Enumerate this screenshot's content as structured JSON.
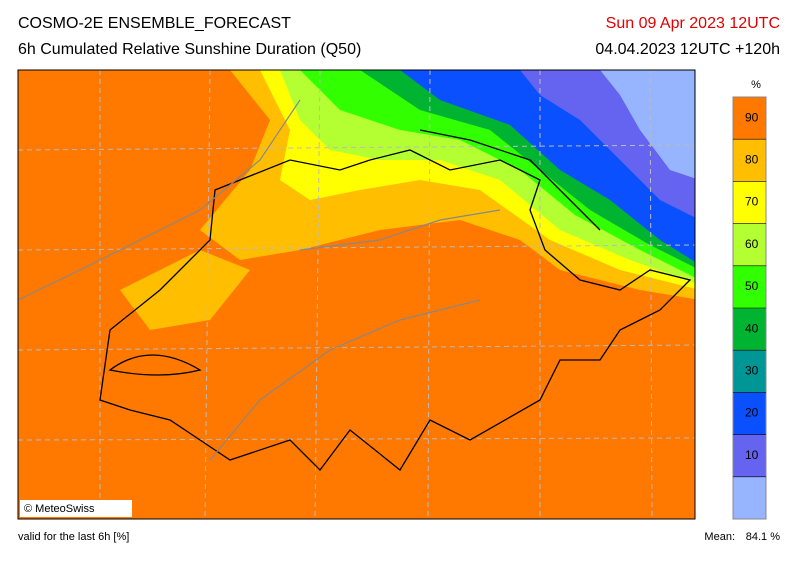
{
  "header": {
    "title": "COSMO-2E ENSEMBLE_FORECAST",
    "subtitle": "6h Cumulated Relative Sunshine Duration (Q50)",
    "valid_date": "Sun 09 Apr 2023 12UTC",
    "run": "04.04.2023 12UTC +120h"
  },
  "map": {
    "credit": "© MeteoSwiss"
  },
  "legend": {
    "unit": "%",
    "ticks": [
      10,
      20,
      30,
      40,
      50,
      60,
      70,
      80,
      90
    ],
    "colors": [
      "#96b4ff",
      "#6464f0",
      "#0a50ff",
      "#009696",
      "#00b432",
      "#32ff00",
      "#b4ff32",
      "#ffff00",
      "#ffbe00",
      "#ff7800"
    ]
  },
  "footer": {
    "note": "valid for the last 6h [%]",
    "mean_label": "Mean:",
    "mean_value": "84.1 %"
  }
}
